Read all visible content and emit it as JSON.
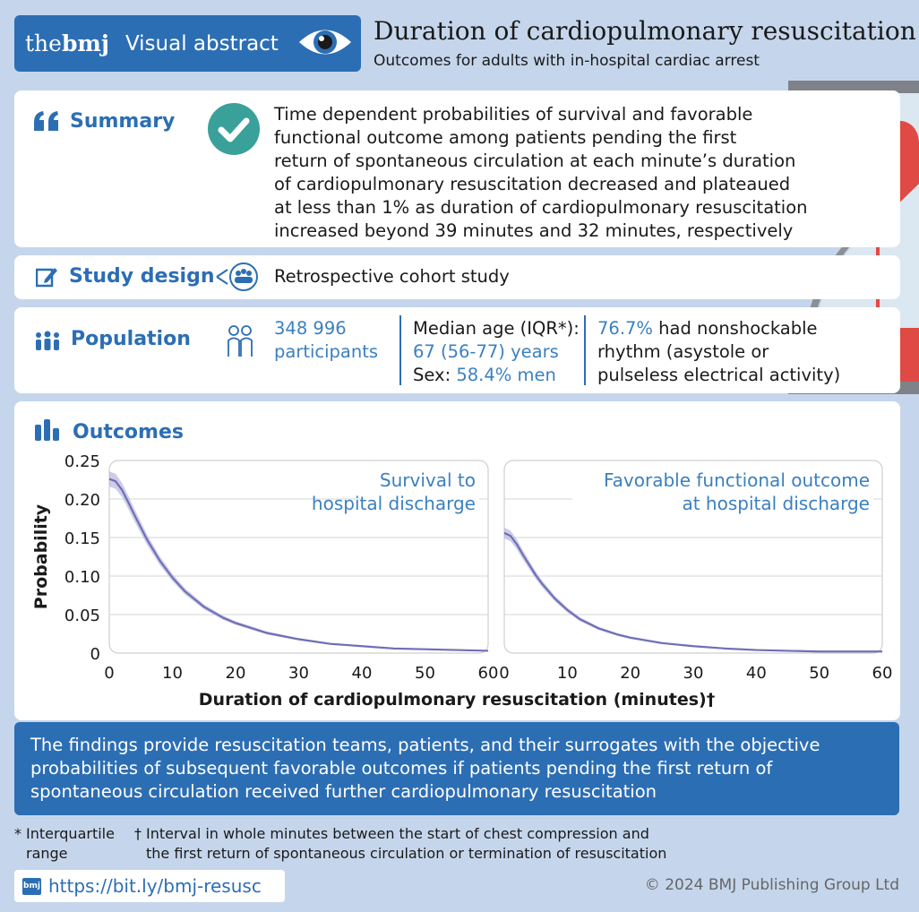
{
  "header": {
    "brand_the": "the",
    "brand_bmj": "bmj",
    "brand_label": "Visual abstract",
    "title": "Duration of cardiopulmonary resuscitation",
    "subtitle": "Outcomes for adults with in-hospital cardiac arrest"
  },
  "summary": {
    "label": "Summary",
    "lines": [
      "Time dependent probabilities of survival and favorable",
      "functional outcome among patients pending the first",
      "return of spontaneous circulation at each minute’s duration",
      "of cardiopulmonary resuscitation decreased and plateaued",
      "at less than 1% as duration of cardiopulmonary resuscitation",
      "increased beyond 39 minutes and 32 minutes, respectively"
    ]
  },
  "study_design": {
    "label": "Study design",
    "text": "Retrospective cohort study"
  },
  "population": {
    "label": "Population",
    "participants_count": "348 996",
    "participants_label": "participants",
    "median_age_label": "Median age (IQR*):",
    "median_age_value": "67 (56-77) years",
    "sex_label": "Sex: ",
    "sex_value": "58.4% men",
    "nonshockable_pct": "76.7%",
    "nonshockable_text1": " had nonshockable",
    "nonshockable_text2": "rhythm (asystole or",
    "nonshockable_text3": "pulseless electrical activity)"
  },
  "outcomes": {
    "label": "Outcomes"
  },
  "chart_data": [
    {
      "type": "line",
      "title": "Survival to hospital discharge",
      "title_lines": [
        "Survival to",
        "hospital discharge"
      ],
      "xlabel": "Duration of cardiopulmonary resuscitation (minutes)†",
      "ylabel": "Probability",
      "xlim": [
        0,
        60
      ],
      "ylim": [
        0,
        0.25
      ],
      "xticks": [
        "0",
        "10",
        "20",
        "30",
        "40",
        "50",
        "60"
      ],
      "yticks": [
        "0",
        "0.05",
        "0.10",
        "0.15",
        "0.20",
        "0.25"
      ],
      "grid": true,
      "x": [
        0,
        1,
        2,
        3,
        4,
        5,
        6,
        8,
        10,
        12,
        15,
        18,
        20,
        25,
        30,
        35,
        40,
        45,
        50,
        55,
        60
      ],
      "y": [
        0.226,
        0.223,
        0.212,
        0.196,
        0.179,
        0.163,
        0.147,
        0.12,
        0.098,
        0.08,
        0.06,
        0.046,
        0.039,
        0.026,
        0.018,
        0.012,
        0.009,
        0.006,
        0.005,
        0.004,
        0.003
      ]
    },
    {
      "type": "line",
      "title": "Favorable functional outcome at hospital discharge",
      "title_lines": [
        "Favorable functional outcome",
        "at hospital discharge"
      ],
      "xlim": [
        0,
        60
      ],
      "ylim": [
        0,
        0.25
      ],
      "xticks": [
        "0",
        "10",
        "20",
        "30",
        "40",
        "50",
        "60"
      ],
      "grid": true,
      "x": [
        0,
        1,
        2,
        3,
        4,
        5,
        6,
        8,
        10,
        12,
        15,
        18,
        20,
        25,
        30,
        35,
        40,
        45,
        50,
        55,
        60
      ],
      "y": [
        0.156,
        0.152,
        0.141,
        0.127,
        0.114,
        0.101,
        0.09,
        0.071,
        0.056,
        0.044,
        0.032,
        0.024,
        0.02,
        0.013,
        0.009,
        0.006,
        0.004,
        0.003,
        0.002,
        0.002,
        0.002
      ]
    }
  ],
  "conclusion": {
    "lines": [
      "The findings provide resuscitation teams, patients, and their surrogates with the objective",
      "probabilities of subsequent favorable outcomes if patients pending the first return of",
      "spontaneous circulation received further cardiopulmonary resuscitation"
    ]
  },
  "footnotes": {
    "iqr_mark": "*",
    "iqr_line1": "Interquartile",
    "iqr_line2": "range",
    "dagger_mark": "†",
    "dagger_line1": "Interval in whole minutes between the start of chest compression and",
    "dagger_line2": "the first return of spontaneous circulation or termination of resuscitation"
  },
  "footer": {
    "badge": "bmj",
    "url": "https://bit.ly/bmj-resusc",
    "copyright": "© 2024 BMJ Publishing Group Ltd"
  },
  "colors": {
    "brand_blue": "#2c6eb4",
    "accent_blue": "#3b80c0",
    "line_purple": "#6f6fb8",
    "background": "#c5d6ec"
  }
}
